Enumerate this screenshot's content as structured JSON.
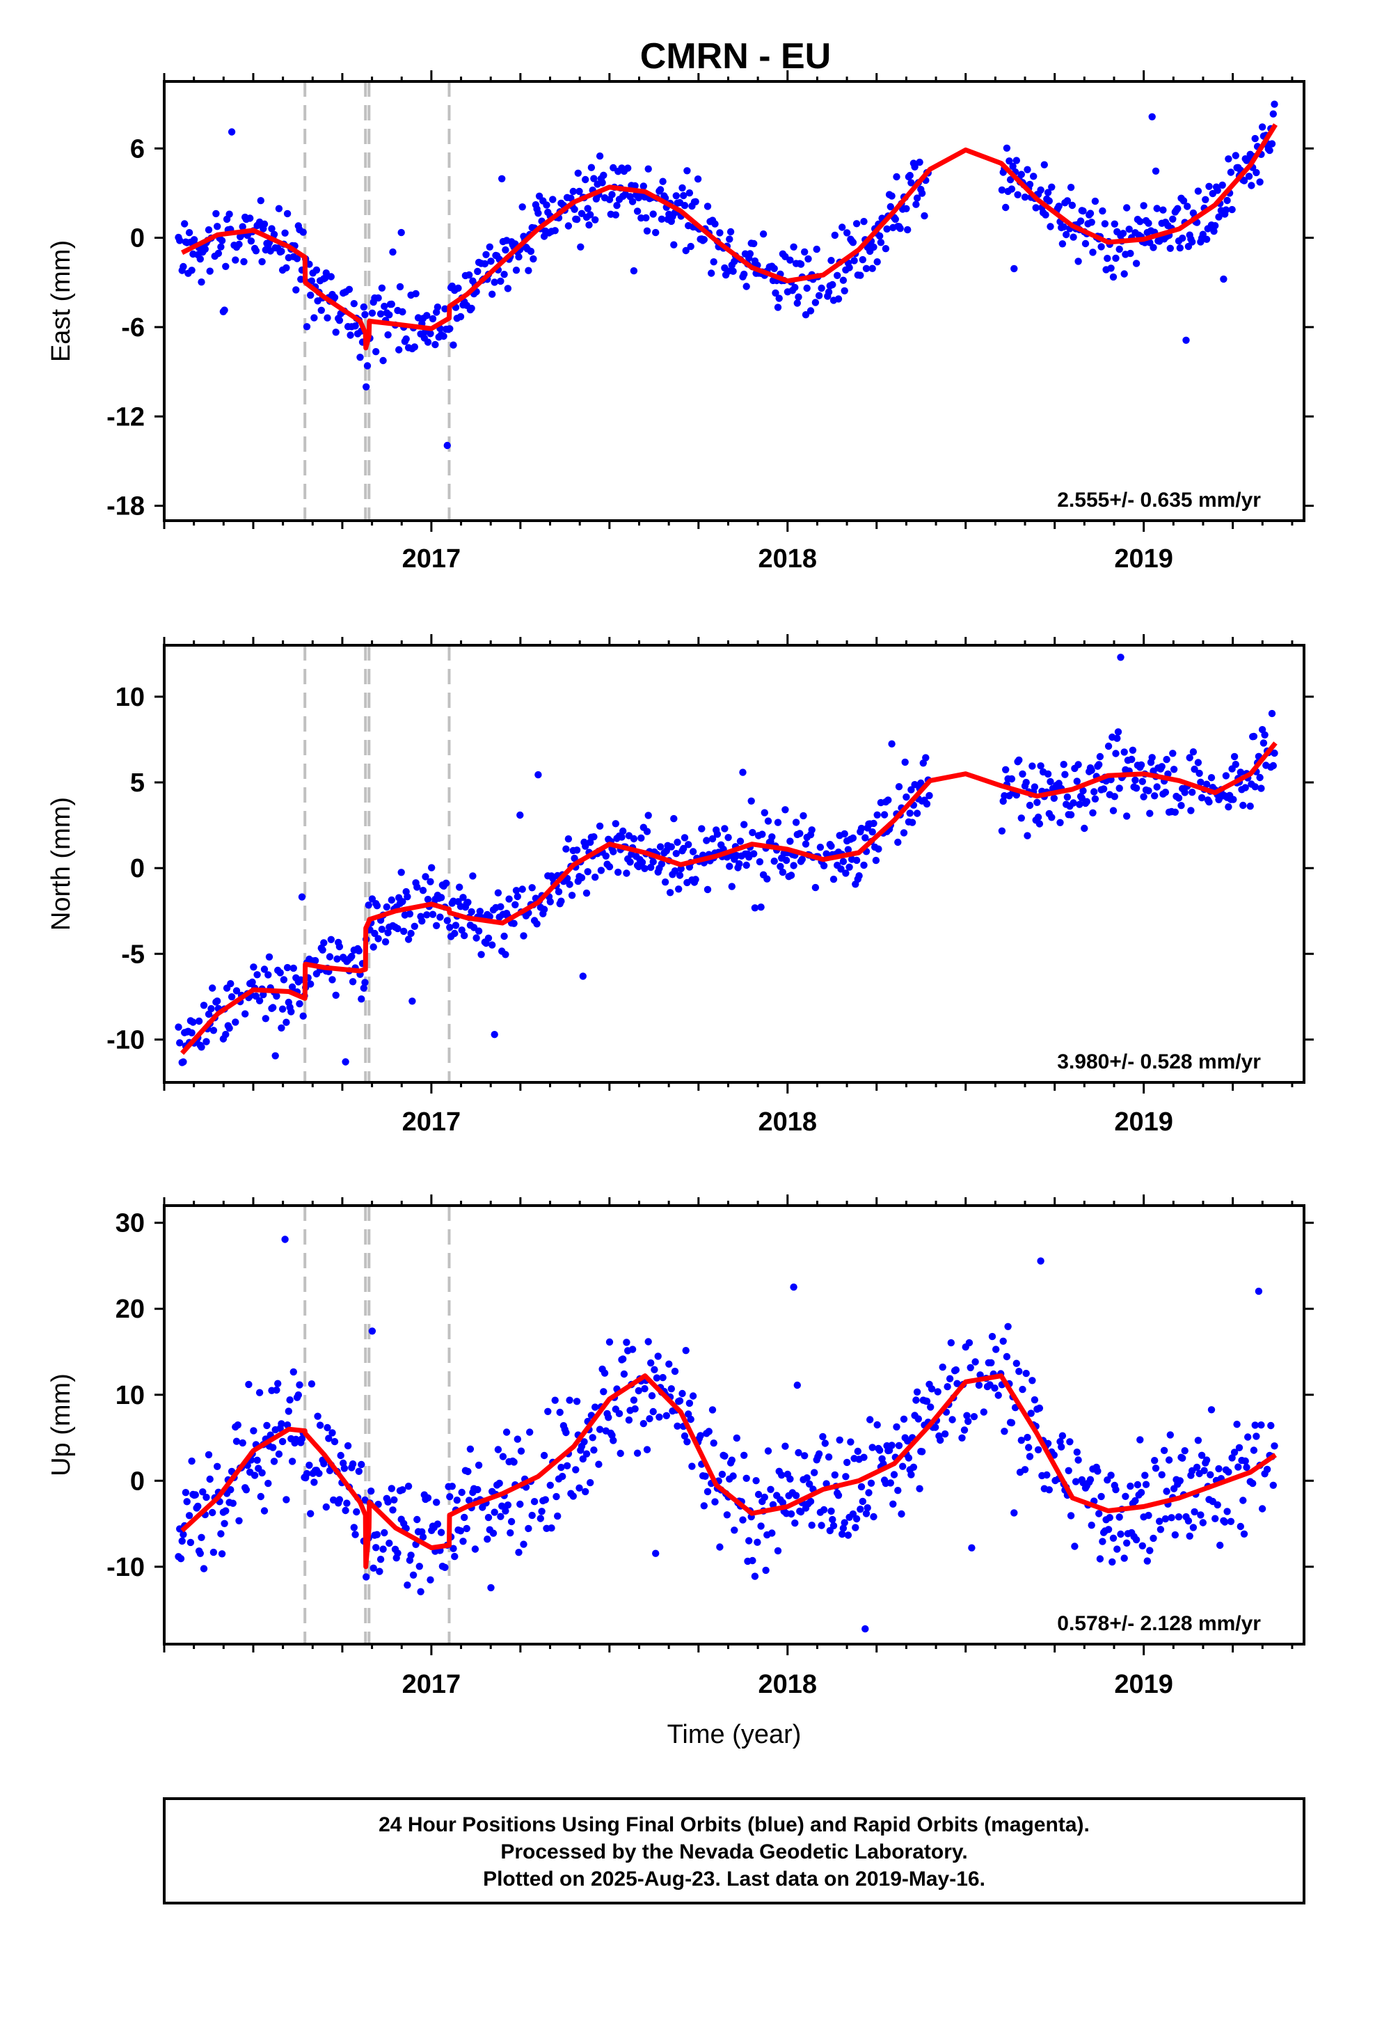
{
  "title": "CMRN - EU",
  "footer": {
    "lines": [
      "24 Hour Positions Using Final Orbits (blue) and Rapid Orbits (magenta).",
      "Processed by the Nevada Geodetic Laboratory.",
      "Plotted on 2025-Aug-23. Last data on 2019-May-16."
    ]
  },
  "colors": {
    "points": "#0000ff",
    "model": "#ff0000",
    "steps": "#c0c0c0",
    "frame": "#000000"
  },
  "chart_data": [
    {
      "type": "scatter",
      "panel": "east",
      "title": "",
      "ylabel": "East (mm)",
      "xlabel": "",
      "xlim": [
        2016.25,
        2019.45
      ],
      "ylim": [
        -19,
        10.5
      ],
      "yticks": [
        -18,
        -12,
        -6,
        0,
        6
      ],
      "xticks": [
        2017,
        2018,
        2019
      ],
      "rate_label": "2.555+/- 0.635 mm/yr",
      "step_epochs": [
        2016.645,
        2016.815,
        2016.825,
        2017.05
      ],
      "model": {
        "t": [
          2016.3,
          2016.4,
          2016.5,
          2016.6,
          2016.645,
          2016.646,
          2016.7,
          2016.8,
          2016.815,
          2016.816,
          2016.825,
          2016.826,
          2016.9,
          2017.0,
          2017.05,
          2017.051,
          2017.1,
          2017.2,
          2017.3,
          2017.4,
          2017.5,
          2017.6,
          2017.7,
          2017.8,
          2017.9,
          2018.0,
          2018.1,
          2018.2,
          2018.3,
          2018.4,
          2018.5,
          2018.6,
          2018.7,
          2018.8,
          2018.9,
          2019.0,
          2019.1,
          2019.2,
          2019.3,
          2019.37
        ],
        "y": [
          -1.0,
          0.2,
          0.5,
          -0.6,
          -1.3,
          -3.0,
          -4.0,
          -5.6,
          -6.4,
          -7.4,
          -6.6,
          -5.6,
          -5.8,
          -6.1,
          -5.4,
          -4.6,
          -3.8,
          -1.6,
          0.6,
          2.4,
          3.4,
          3.1,
          1.8,
          -0.2,
          -2.0,
          -2.9,
          -2.5,
          -0.8,
          1.8,
          4.6,
          5.9,
          5.0,
          2.6,
          0.8,
          -0.3,
          -0.1,
          0.6,
          2.2,
          4.9,
          7.6
        ]
      }
    },
    {
      "type": "scatter",
      "panel": "north",
      "title": "",
      "ylabel": "North (mm)",
      "xlabel": "",
      "xlim": [
        2016.25,
        2019.45
      ],
      "ylim": [
        -12.5,
        13.0
      ],
      "yticks": [
        -10,
        -5,
        0,
        5,
        10
      ],
      "xticks": [
        2017,
        2018,
        2019
      ],
      "rate_label": "3.980+/- 0.528 mm/yr",
      "step_epochs": [
        2016.645,
        2016.815,
        2016.825,
        2017.05
      ],
      "model": {
        "t": [
          2016.3,
          2016.4,
          2016.5,
          2016.6,
          2016.645,
          2016.646,
          2016.7,
          2016.8,
          2016.815,
          2016.816,
          2016.825,
          2016.826,
          2016.9,
          2017.0,
          2017.05,
          2017.051,
          2017.1,
          2017.2,
          2017.3,
          2017.4,
          2017.5,
          2017.6,
          2017.7,
          2017.8,
          2017.9,
          2018.0,
          2018.1,
          2018.2,
          2018.3,
          2018.4,
          2018.5,
          2018.6,
          2018.7,
          2018.8,
          2018.9,
          2019.0,
          2019.1,
          2019.2,
          2019.3,
          2019.37
        ],
        "y": [
          -10.8,
          -8.5,
          -7.1,
          -7.2,
          -7.6,
          -5.6,
          -5.8,
          -6.0,
          -5.9,
          -3.5,
          -3.1,
          -3.0,
          -2.5,
          -2.1,
          -2.4,
          -2.6,
          -2.9,
          -3.2,
          -2.0,
          0.2,
          1.4,
          0.9,
          0.2,
          0.7,
          1.4,
          1.1,
          0.5,
          0.9,
          2.8,
          5.1,
          5.5,
          4.8,
          4.2,
          4.6,
          5.4,
          5.5,
          5.1,
          4.4,
          5.5,
          7.3
        ]
      }
    },
    {
      "type": "scatter",
      "panel": "up",
      "title": "",
      "ylabel": "Up (mm)",
      "xlabel": "Time (year)",
      "xlim": [
        2016.25,
        2019.45
      ],
      "ylim": [
        -19,
        32
      ],
      "yticks": [
        -10,
        0,
        10,
        20,
        30
      ],
      "xticks": [
        2017,
        2018,
        2019
      ],
      "rate_label": "0.578+/- 2.128 mm/yr",
      "step_epochs": [
        2016.645,
        2016.815,
        2016.825,
        2017.05
      ],
      "model": {
        "t": [
          2016.3,
          2016.4,
          2016.5,
          2016.6,
          2016.645,
          2016.646,
          2016.7,
          2016.8,
          2016.815,
          2016.816,
          2016.825,
          2016.826,
          2016.9,
          2017.0,
          2017.05,
          2017.051,
          2017.1,
          2017.2,
          2017.3,
          2017.4,
          2017.5,
          2017.6,
          2017.7,
          2017.8,
          2017.9,
          2018.0,
          2018.1,
          2018.2,
          2018.3,
          2018.4,
          2018.5,
          2018.6,
          2018.7,
          2018.8,
          2018.9,
          2019.0,
          2019.1,
          2019.2,
          2019.3,
          2019.37
        ],
        "y": [
          -5.8,
          -2.0,
          3.5,
          6.0,
          5.8,
          5.5,
          3.0,
          -2.5,
          -4.0,
          -10.0,
          -5.5,
          -2.5,
          -5.5,
          -7.8,
          -7.5,
          -4.0,
          -3.0,
          -1.5,
          0.5,
          4.0,
          9.5,
          12.2,
          8.0,
          -0.5,
          -3.8,
          -3.0,
          -1.0,
          0.0,
          2.0,
          6.5,
          11.5,
          12.2,
          5.5,
          -2.0,
          -3.5,
          -3.0,
          -2.0,
          -0.5,
          1.0,
          3.0
        ]
      }
    }
  ]
}
